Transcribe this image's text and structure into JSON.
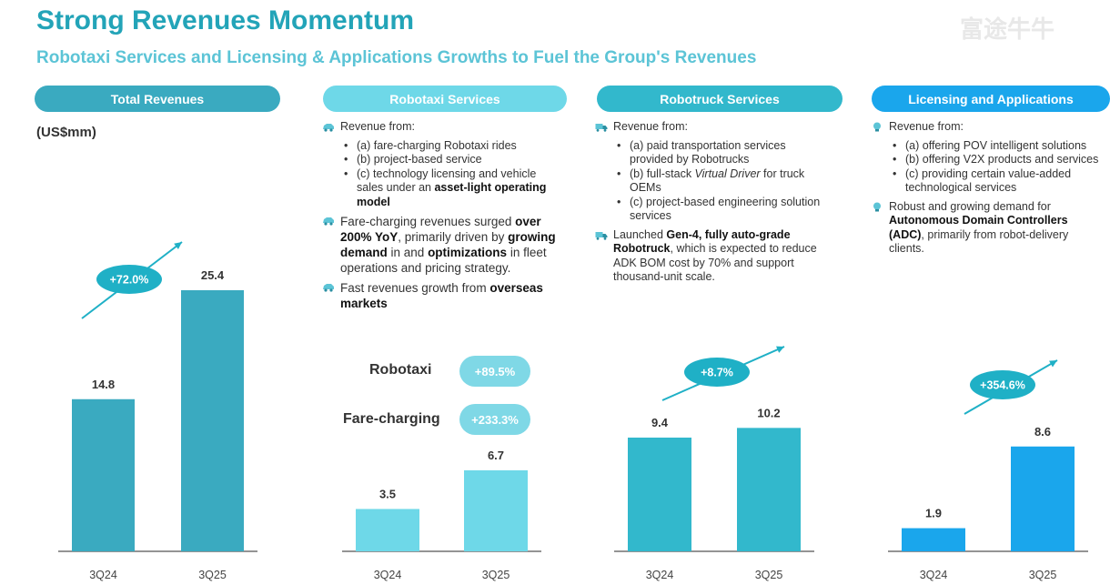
{
  "title": "Strong Revenues Momentum",
  "subtitle": "Robotaxi Services and Licensing & Applications Growths to Fuel the Group's Revenues",
  "watermark": "富途牛牛",
  "colors": {
    "total": "#3aaac0",
    "robotaxi": "#6ed8e8",
    "robotruck": "#32b8cc",
    "licensing": "#1aa6ec",
    "title": "#23a4b8",
    "pill": "#1fb0c6"
  },
  "panels": {
    "total": {
      "header": "Total Revenues",
      "unit": "(US$mm)"
    },
    "robotaxi": {
      "header": "Robotaxi Services",
      "bullet1_intro": "Revenue from:",
      "bullet1_a": "(a) fare-charging Robotaxi rides",
      "bullet1_b": "(b) project-based service",
      "bullet1_c_pre": "(c) technology licensing and vehicle sales under an ",
      "bullet1_c_bold": "asset-light operating model",
      "bullet2_pre": "Fare-charging revenues surged ",
      "bullet2_bold1": "over 200% YoY",
      "bullet2_mid1": ", primarily driven by ",
      "bullet2_bold2": "growing demand",
      "bullet2_mid2": " in and ",
      "bullet2_bold3": "optimizations",
      "bullet2_post": " in fleet operations and pricing strategy.",
      "bullet3_pre": "Fast revenues growth from ",
      "bullet3_bold": "overseas markets",
      "cmp1_label": "Robotaxi",
      "cmp1_value": "+89.5%",
      "cmp2_label": "Fare-charging",
      "cmp2_value": "+233.3%"
    },
    "robotruck": {
      "header": "Robotruck Services",
      "bullet1_intro": "Revenue from:",
      "bullet1_a": "(a) paid transportation services provided by Robotrucks",
      "bullet1_b_pre": "(b) full-stack ",
      "bullet1_b_em": "Virtual Driver",
      "bullet1_b_post": " for truck OEMs",
      "bullet1_c": "(c) project-based engineering solution services",
      "bullet2_pre": "Launched ",
      "bullet2_bold": "Gen-4, fully auto-grade Robotruck",
      "bullet2_post": ", which is expected to reduce ADK BOM cost by 70% and support thousand-unit scale."
    },
    "licensing": {
      "header": "Licensing and Applications",
      "bullet1_intro": "Revenue from:",
      "bullet1_a": "(a) offering POV intelligent solutions",
      "bullet1_b": "(b) offering V2X products and services",
      "bullet1_c": "(c) providing certain value-added technological services",
      "bullet2_pre": "Robust and growing demand for ",
      "bullet2_bold": "Autonomous Domain Controllers (ADC)",
      "bullet2_post": ", primarily from robot-delivery clients."
    }
  },
  "chart_data": [
    {
      "type": "bar",
      "name": "Total Revenues",
      "unit": "US$mm",
      "categories": [
        "3Q24",
        "3Q25"
      ],
      "values": [
        14.8,
        25.4
      ],
      "growth": "+72.0%"
    },
    {
      "type": "bar",
      "name": "Robotaxi Services",
      "categories": [
        "3Q24",
        "3Q25"
      ],
      "values": [
        3.5,
        6.7
      ]
    },
    {
      "type": "bar",
      "name": "Robotruck Services",
      "categories": [
        "3Q24",
        "3Q25"
      ],
      "values": [
        9.4,
        10.2
      ],
      "growth": "+8.7%"
    },
    {
      "type": "bar",
      "name": "Licensing and Applications",
      "categories": [
        "3Q24",
        "3Q25"
      ],
      "values": [
        1.9,
        8.6
      ],
      "growth": "+354.6%"
    }
  ]
}
